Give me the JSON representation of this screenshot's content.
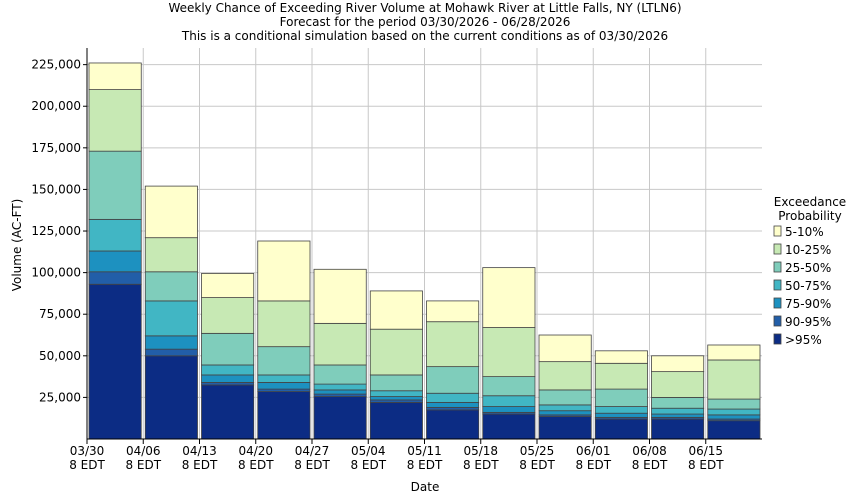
{
  "chart_data": {
    "type": "bar",
    "stacked": true,
    "title": [
      "Weekly Chance of Exceeding River Volume at Mohawk River at Little Falls, NY (LTLN6)",
      "Forecast for the period 03/30/2026 - 06/28/2026",
      "This is a conditional simulation based on the current conditions as of 03/30/2026"
    ],
    "xlabel": "Date",
    "ylabel": "Volume (AC-FT)",
    "ylim": [
      0,
      235000
    ],
    "y_ticks": [
      25000,
      50000,
      75000,
      100000,
      125000,
      150000,
      175000,
      200000,
      225000
    ],
    "y_tick_labels": [
      "25,000",
      "50,000",
      "75,000",
      "100,000",
      "125,000",
      "150,000",
      "175,000",
      "200,000",
      "225,000"
    ],
    "x_tick_labels": [
      [
        "03/30",
        "8 EDT"
      ],
      [
        "04/06",
        "8 EDT"
      ],
      [
        "04/13",
        "8 EDT"
      ],
      [
        "04/20",
        "8 EDT"
      ],
      [
        "04/27",
        "8 EDT"
      ],
      [
        "05/04",
        "8 EDT"
      ],
      [
        "05/11",
        "8 EDT"
      ],
      [
        "05/18",
        "8 EDT"
      ],
      [
        "05/25",
        "8 EDT"
      ],
      [
        "06/01",
        "8 EDT"
      ],
      [
        "06/08",
        "8 EDT"
      ],
      [
        "06/15",
        "8 EDT"
      ]
    ],
    "grid": true,
    "legend": {
      "title": [
        "Exceedance",
        "Probability"
      ],
      "placement": "right",
      "entries": [
        {
          "label": "5-10%",
          "color": "#ffffcc"
        },
        {
          "label": "10-25%",
          "color": "#c7e9b4"
        },
        {
          "label": "25-50%",
          "color": "#7fcdbb"
        },
        {
          "label": "50-75%",
          "color": "#41b6c4"
        },
        {
          "label": "75-90%",
          "color": "#1d91c0"
        },
        {
          "label": "90-95%",
          "color": "#225ea8"
        },
        {
          "label": ">95%",
          "color": "#0c2c84"
        }
      ]
    },
    "boundary_values_per_week": [
      [
        93000,
        100500,
        113000,
        132000,
        173000,
        210000,
        226000
      ],
      [
        50000,
        54000,
        62000,
        83000,
        100500,
        121000,
        152000
      ],
      [
        32500,
        34000,
        38500,
        44500,
        63500,
        85000,
        99500
      ],
      [
        28500,
        30000,
        34000,
        38500,
        55500,
        83000,
        119000
      ],
      [
        25500,
        27000,
        29500,
        33000,
        44500,
        69500,
        102000
      ],
      [
        22000,
        23500,
        25500,
        29000,
        38500,
        66000,
        89000
      ],
      [
        17500,
        19000,
        22000,
        27500,
        43500,
        70500,
        83000
      ],
      [
        15000,
        16000,
        19500,
        26000,
        37500,
        67000,
        103000
      ],
      [
        13500,
        14500,
        17000,
        20500,
        29500,
        46500,
        62500
      ],
      [
        12000,
        13000,
        15500,
        19500,
        30000,
        45500,
        53000
      ],
      [
        12000,
        13000,
        15000,
        18500,
        25000,
        40500,
        50000
      ],
      [
        11000,
        12000,
        14500,
        18000,
        24000,
        47500,
        56500
      ]
    ]
  }
}
